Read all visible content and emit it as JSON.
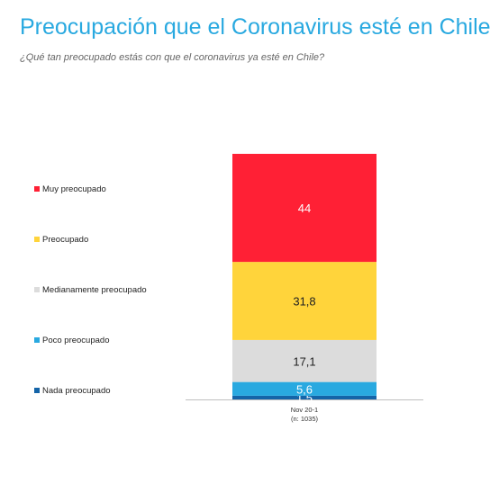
{
  "title": "Preocupación que el Coronavirus esté en Chile",
  "subtitle": "¿Qué tan preocupado estás con que el coronavirus ya esté en Chile?",
  "chart_data": {
    "type": "bar",
    "stacked": true,
    "categories": [
      "Nov 20-1"
    ],
    "category_sublabels": [
      "(n: 1035)"
    ],
    "ylim": [
      0,
      100
    ],
    "grid": false,
    "legend_position": "left",
    "series": [
      {
        "name": "Nada preocupado",
        "values": [
          1.5
        ],
        "label": "1,5",
        "color": "#1464a8"
      },
      {
        "name": "Poco preocupado",
        "values": [
          5.6
        ],
        "label": "5,6",
        "color": "#29a9e0"
      },
      {
        "name": "Medianamente preocupado",
        "values": [
          17.1
        ],
        "label": "17,1",
        "color": "#dcdcdc"
      },
      {
        "name": "Preocupado",
        "values": [
          31.8
        ],
        "label": "31,8",
        "color": "#ffd43b"
      },
      {
        "name": "Muy preocupado",
        "values": [
          44
        ],
        "label": "44",
        "color": "#ff2035"
      }
    ]
  }
}
